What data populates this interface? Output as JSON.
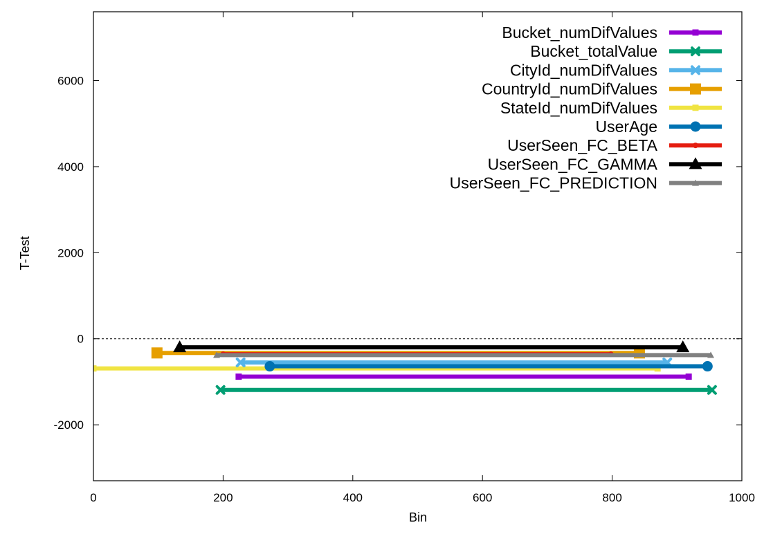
{
  "chart_data": {
    "type": "line",
    "xlabel": "Bin",
    "ylabel": "T-Test",
    "xlim": [
      0,
      1000
    ],
    "ylim": [
      -3300,
      7600
    ],
    "x_ticks": [
      0,
      200,
      400,
      600,
      800,
      1000
    ],
    "y_ticks": [
      -2000,
      0,
      2000,
      4000,
      6000
    ],
    "grid": false,
    "zero_line": true,
    "legend_position": "top-right",
    "series": [
      {
        "name": "Bucket_numDifValues",
        "color": "#9400d3",
        "marker": "small-square",
        "x": [
          224,
          918
        ],
        "y": [
          -880,
          -880
        ]
      },
      {
        "name": "Bucket_totalValue",
        "color": "#009e73",
        "marker": "x-cross",
        "x": [
          196,
          954
        ],
        "y": [
          -1190,
          -1190
        ]
      },
      {
        "name": "CityId_numDifValues",
        "color": "#56b4e9",
        "marker": "x-cross",
        "x": [
          227,
          885
        ],
        "y": [
          -550,
          -550
        ]
      },
      {
        "name": "CountryId_numDifValues",
        "color": "#e69f00",
        "marker": "square",
        "x": [
          98,
          842
        ],
        "y": [
          -330,
          -330
        ]
      },
      {
        "name": "StateId_numDifValues",
        "color": "#f0e442",
        "marker": "small-square",
        "x": [
          0,
          870
        ],
        "y": [
          -690,
          -690
        ]
      },
      {
        "name": "UserAge",
        "color": "#0072b2",
        "marker": "circle",
        "x": [
          272,
          947
        ],
        "y": [
          -640,
          -640
        ]
      },
      {
        "name": "UserSeen_FC_BETA",
        "color": "#e51e10",
        "marker": "dot",
        "x": [
          200,
          798
        ],
        "y": [
          -360,
          -360
        ]
      },
      {
        "name": "UserSeen_FC_GAMMA",
        "color": "#000000",
        "marker": "triangle",
        "x": [
          133,
          909
        ],
        "y": [
          -200,
          -200
        ]
      },
      {
        "name": "UserSeen_FC_PREDICTION",
        "color": "#808080",
        "marker": "small-triangle",
        "x": [
          190,
          952
        ],
        "y": [
          -380,
          -380
        ]
      }
    ],
    "draw_order": [
      4,
      3,
      6,
      8,
      2,
      5,
      0,
      1,
      7
    ]
  }
}
